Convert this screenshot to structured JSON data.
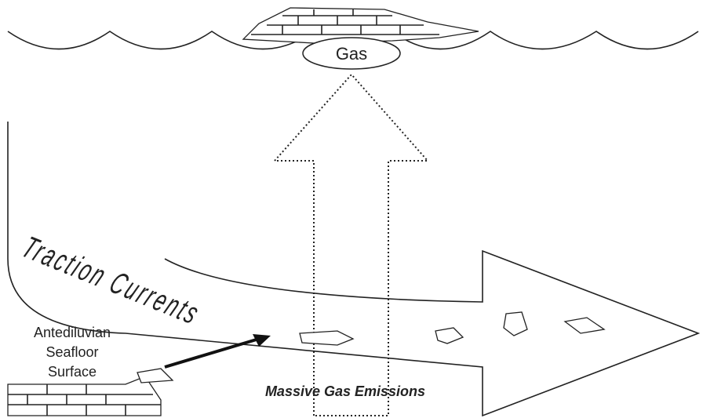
{
  "labels": {
    "gas": "Gas",
    "traction": "Traction Currents",
    "seafloor": [
      "Antediluvian",
      "Seafloor",
      "Surface"
    ],
    "emissions": "Massive Gas Emissions"
  }
}
